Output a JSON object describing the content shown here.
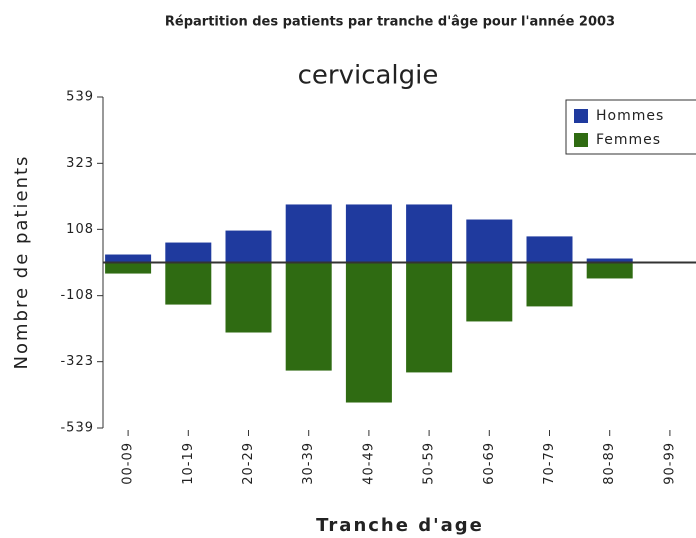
{
  "chart_data": {
    "type": "bar",
    "title": "Répartition des patients par tranche d'âge pour l'année 2003",
    "subtitle": "cervicalgie",
    "x_label": "Tranche d'age",
    "y_label": "Nombre de patients",
    "categories": [
      "00-09",
      "10-19",
      "20-29",
      "30-39",
      "40-49",
      "50-59",
      "60-69",
      "70-79",
      "80-89",
      "90-99"
    ],
    "series": [
      {
        "name": "Hommes",
        "color": "#1f3a9e",
        "values": [
          26,
          65,
          104,
          189,
          189,
          189,
          140,
          85,
          13,
          0
        ]
      },
      {
        "name": "Femmes",
        "color": "#2f6b12",
        "values": [
          -36,
          -137,
          -228,
          -352,
          -456,
          -358,
          -192,
          -143,
          -52,
          0
        ]
      }
    ],
    "ylim": [
      -539,
      539
    ],
    "yticks": [
      -539,
      -323,
      -108,
      108,
      323,
      539
    ],
    "legend": "top-right"
  }
}
